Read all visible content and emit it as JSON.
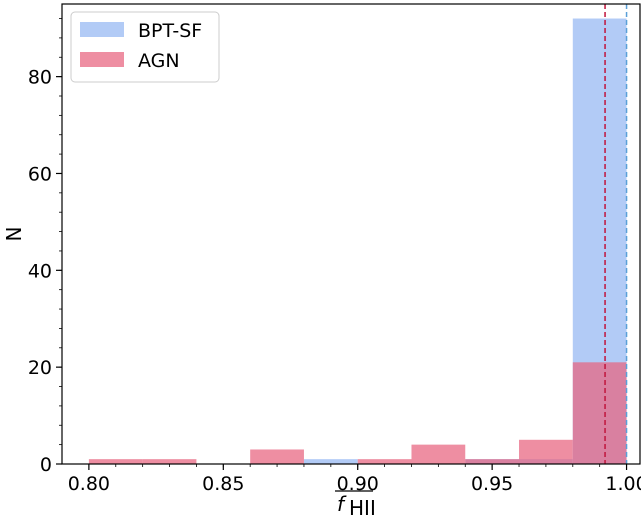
{
  "chart_data": {
    "type": "histogram",
    "ylabel": "N",
    "xlabel_main": "f",
    "xlabel_sub": "HII",
    "xlim": [
      0.79,
      1.005
    ],
    "ylim": [
      0,
      95
    ],
    "xticks": [
      0.8,
      0.85,
      0.9,
      0.95,
      1.0
    ],
    "xtick_labels": [
      "0.80",
      "0.85",
      "0.90",
      "0.95",
      "1.00"
    ],
    "yticks": [
      0,
      20,
      40,
      60,
      80
    ],
    "ytick_labels": [
      "0",
      "20",
      "40",
      "60",
      "80"
    ],
    "legend_position": "top-left",
    "series": [
      {
        "name": "BPT-SF",
        "color": "#a4c2f4",
        "opacity": 0.85,
        "bins": [
          {
            "x0": 0.88,
            "x1": 0.9,
            "count": 1
          },
          {
            "x0": 0.94,
            "x1": 0.96,
            "count": 1
          },
          {
            "x0": 0.96,
            "x1": 0.98,
            "count": 1
          },
          {
            "x0": 0.98,
            "x1": 1.0,
            "count": 92
          }
        ],
        "median_line": 1.0,
        "line_color": "#5aa0d8"
      },
      {
        "name": "AGN",
        "color": "#e8627e",
        "opacity": 0.72,
        "bins": [
          {
            "x0": 0.8,
            "x1": 0.82,
            "count": 1
          },
          {
            "x0": 0.82,
            "x1": 0.84,
            "count": 1
          },
          {
            "x0": 0.86,
            "x1": 0.88,
            "count": 3
          },
          {
            "x0": 0.9,
            "x1": 0.92,
            "count": 1
          },
          {
            "x0": 0.92,
            "x1": 0.94,
            "count": 4
          },
          {
            "x0": 0.94,
            "x1": 0.96,
            "count": 1
          },
          {
            "x0": 0.96,
            "x1": 0.98,
            "count": 5
          },
          {
            "x0": 0.98,
            "x1": 1.0,
            "count": 21
          }
        ],
        "median_line": 0.992,
        "line_color": "#c0143c"
      }
    ]
  }
}
